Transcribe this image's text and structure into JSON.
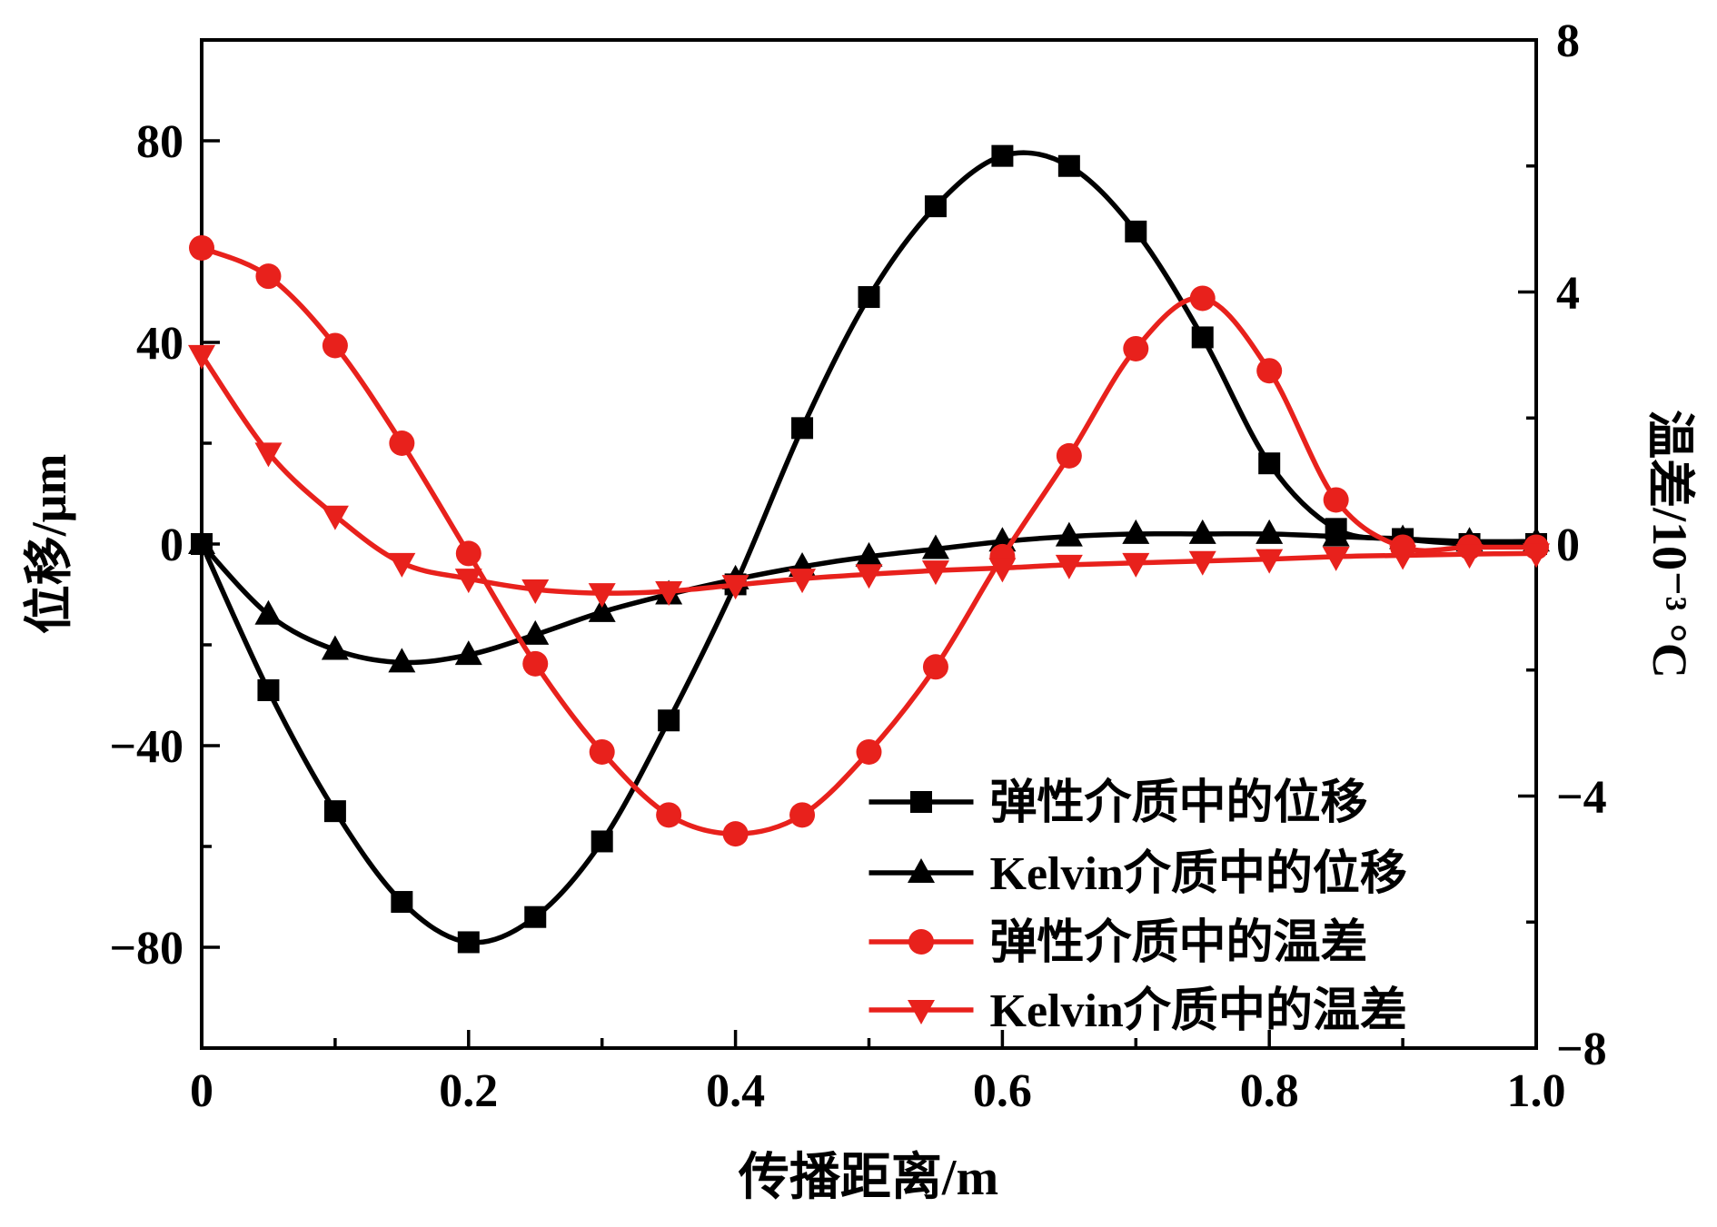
{
  "chart_data": {
    "type": "line",
    "title": "",
    "xlabel": "传播距离/m",
    "ylabel_left": "位移/μm",
    "ylabel_right": "温差/10⁻³ °C",
    "xlim": [
      0,
      1
    ],
    "ylim_left": [
      -100,
      100
    ],
    "ylim_right": [
      -8,
      8
    ],
    "x_ticks": [
      0,
      0.2,
      0.4,
      0.6,
      0.8,
      1.0
    ],
    "x_tick_labels": [
      "0",
      "0.2",
      "0.4",
      "0.6",
      "0.8",
      "1.0"
    ],
    "x_minor_ticks": [
      0.1,
      0.3,
      0.5,
      0.7,
      0.9
    ],
    "left_ticks": [
      -80,
      -40,
      0,
      40,
      80
    ],
    "left_tick_labels": [
      "−80",
      "−40",
      "0",
      "40",
      "80"
    ],
    "left_minor_ticks": [
      -60,
      -20,
      20,
      60
    ],
    "right_ticks": [
      -8,
      -4,
      0,
      4,
      8
    ],
    "right_tick_labels": [
      "−8",
      "−4",
      "0",
      "4",
      "8"
    ],
    "right_minor_ticks": [
      -6,
      -2,
      2,
      6
    ],
    "grid": false,
    "legend_position": "inside-lower-right",
    "colors": {
      "black": "#000000",
      "red": "#e8211c"
    },
    "x": [
      0,
      0.05,
      0.1,
      0.15,
      0.2,
      0.25,
      0.3,
      0.35,
      0.4,
      0.45,
      0.5,
      0.55,
      0.6,
      0.65,
      0.7,
      0.75,
      0.8,
      0.85,
      0.9,
      0.95,
      1.0
    ],
    "series": [
      {
        "name": "弹性介质中的位移",
        "axis": "left",
        "color": "#000000",
        "marker": "square",
        "values": [
          0,
          -29,
          -53,
          -71,
          -79,
          -74,
          -59,
          -35,
          -8,
          23,
          49,
          67,
          77,
          75,
          62,
          41,
          16,
          3,
          1,
          0,
          0
        ]
      },
      {
        "name": "Kelvin介质中的位移",
        "axis": "left",
        "color": "#000000",
        "marker": "triangle-up",
        "values": [
          0,
          -14,
          -21,
          -23.5,
          -22,
          -18,
          -13.5,
          -10,
          -7,
          -4.5,
          -2.5,
          -1,
          0.5,
          1.5,
          2,
          2,
          2,
          1.5,
          1,
          0.5,
          0.5
        ]
      },
      {
        "name": "弹性介质中的温差",
        "axis": "right",
        "color": "#e8211c",
        "marker": "circle",
        "values": [
          4.7,
          4.25,
          3.15,
          1.6,
          -0.15,
          -1.9,
          -3.3,
          -4.3,
          -4.6,
          -4.3,
          -3.3,
          -1.95,
          -0.2,
          1.4,
          3.1,
          3.9,
          2.75,
          0.7,
          -0.05,
          -0.05,
          -0.05
        ]
      },
      {
        "name": "Kelvin介质中的温差",
        "axis": "right",
        "color": "#e8211c",
        "marker": "triangle-down",
        "values": [
          3.0,
          1.45,
          0.45,
          -0.3,
          -0.55,
          -0.72,
          -0.78,
          -0.75,
          -0.65,
          -0.55,
          -0.48,
          -0.42,
          -0.38,
          -0.33,
          -0.3,
          -0.27,
          -0.24,
          -0.2,
          -0.18,
          -0.16,
          -0.15
        ]
      }
    ]
  }
}
